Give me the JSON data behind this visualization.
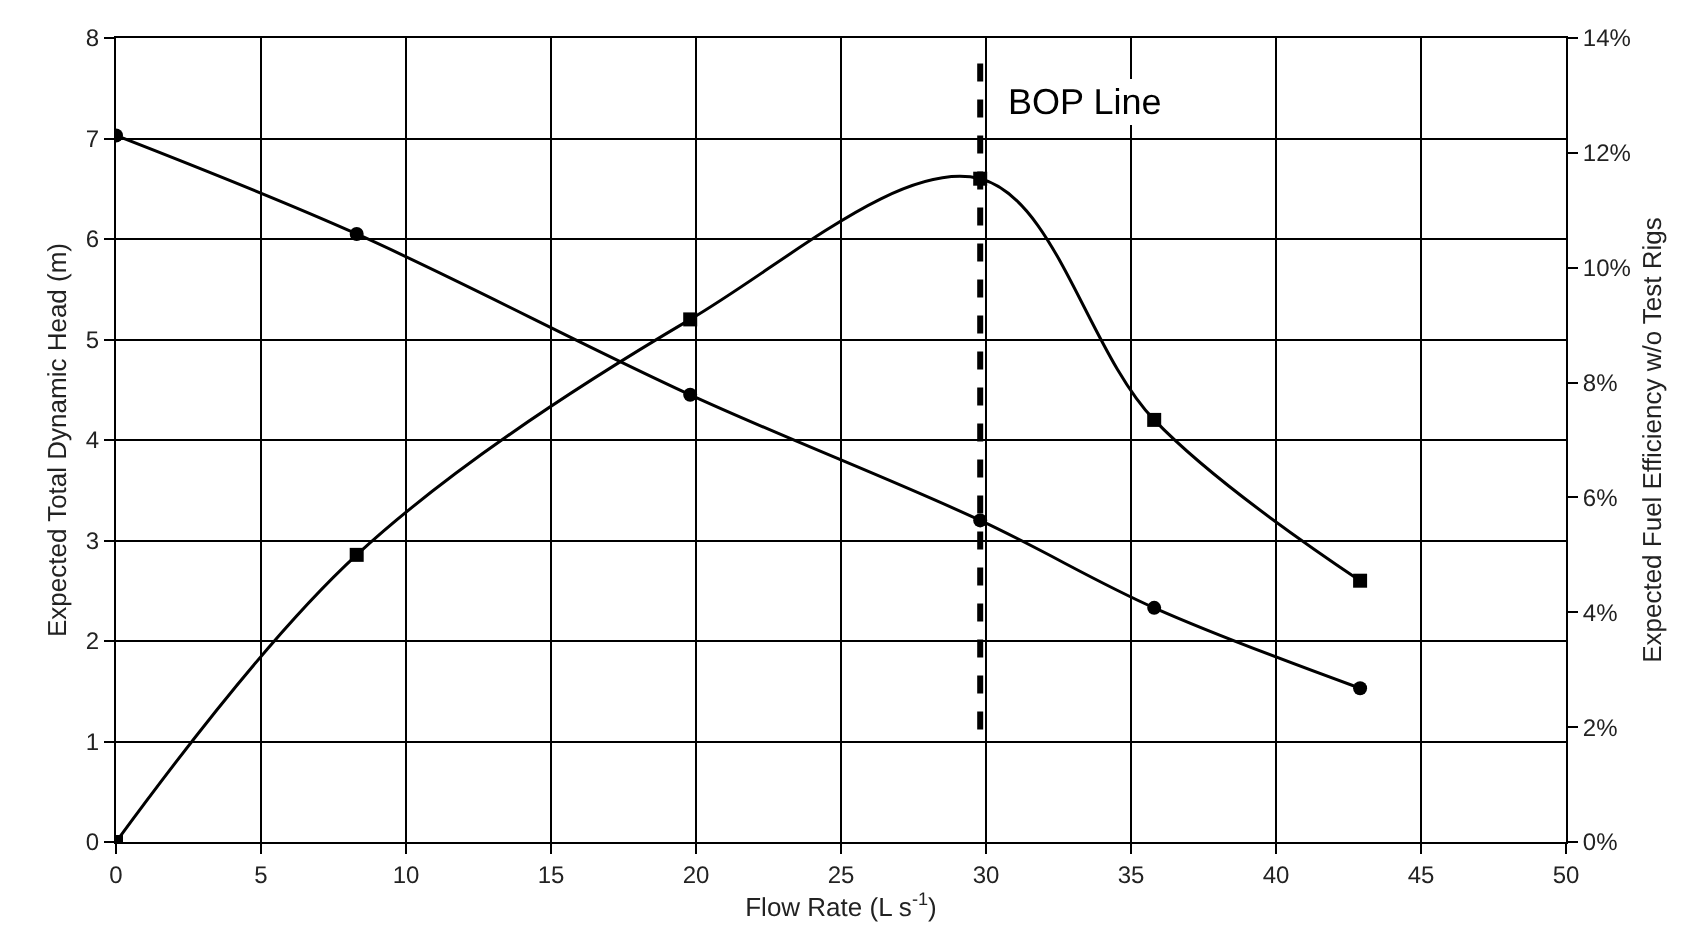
{
  "chart_data": {
    "type": "line",
    "xlabel": "Flow Rate (L s$^{-1}$)",
    "ylabel": "Expected Total Dynamic Head (m)",
    "y2label": "Expected Fuel Efficiency w/o Test Rigs",
    "x": [
      0,
      8.3,
      19.8,
      29.8,
      35.8,
      42.9
    ],
    "series": [
      {
        "color": "#000000",
        "marker": "circle",
        "values": [
          7.03,
          6.05,
          4.45,
          3.2,
          2.33,
          1.53
        ]
      },
      {
        "color": "#000000",
        "marker": "square",
        "axis": "y2",
        "values": [
          0,
          5.0,
          9.1,
          11.55,
          7.35,
          4.55
        ]
      }
    ],
    "xlim": [
      0,
      50
    ],
    "xticks": [
      0,
      5,
      10,
      15,
      20,
      25,
      30,
      35,
      40,
      45,
      50
    ],
    "ylim": [
      0,
      8
    ],
    "yticks": [
      0,
      1,
      2,
      3,
      4,
      5,
      6,
      7,
      8
    ],
    "y2lim": [
      0,
      14
    ],
    "y2ticks": [
      {
        "value": 0,
        "label": "0%"
      },
      {
        "value": 2,
        "label": "2%"
      },
      {
        "value": 4,
        "label": "4%"
      },
      {
        "value": 6,
        "label": "6%"
      },
      {
        "value": 8,
        "label": "8%"
      },
      {
        "value": 10,
        "label": "10%"
      },
      {
        "value": 12,
        "label": "12%"
      },
      {
        "value": 14,
        "label": "14%"
      }
    ],
    "ref_lines": [
      {
        "axis": "x",
        "value": 29.8,
        "label": "BOP Line",
        "color": "#000000",
        "line_style": "dashed"
      }
    ],
    "grid": true
  }
}
